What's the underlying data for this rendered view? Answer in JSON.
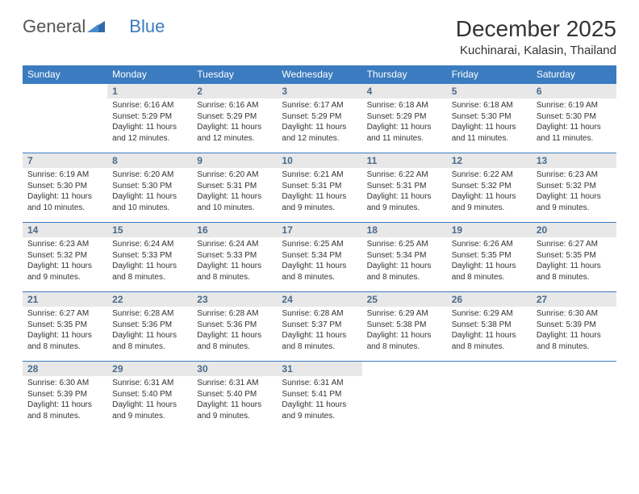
{
  "brand": {
    "general": "General",
    "blue": "Blue"
  },
  "title": "December 2025",
  "location": "Kuchinarai, Kalasin, Thailand",
  "colors": {
    "header_bg": "#3b7bbf",
    "header_text": "#ffffff",
    "daynum_bg": "#e8e8e8",
    "daynum_text": "#4a6a8a",
    "body_text": "#333333",
    "page_bg": "#ffffff",
    "border": "#3b7bbf"
  },
  "weekdays": [
    "Sunday",
    "Monday",
    "Tuesday",
    "Wednesday",
    "Thursday",
    "Friday",
    "Saturday"
  ],
  "weeks": [
    [
      {
        "empty": true
      },
      {
        "num": "1",
        "sunrise": "Sunrise: 6:16 AM",
        "sunset": "Sunset: 5:29 PM",
        "daylight": "Daylight: 11 hours and 12 minutes."
      },
      {
        "num": "2",
        "sunrise": "Sunrise: 6:16 AM",
        "sunset": "Sunset: 5:29 PM",
        "daylight": "Daylight: 11 hours and 12 minutes."
      },
      {
        "num": "3",
        "sunrise": "Sunrise: 6:17 AM",
        "sunset": "Sunset: 5:29 PM",
        "daylight": "Daylight: 11 hours and 12 minutes."
      },
      {
        "num": "4",
        "sunrise": "Sunrise: 6:18 AM",
        "sunset": "Sunset: 5:29 PM",
        "daylight": "Daylight: 11 hours and 11 minutes."
      },
      {
        "num": "5",
        "sunrise": "Sunrise: 6:18 AM",
        "sunset": "Sunset: 5:30 PM",
        "daylight": "Daylight: 11 hours and 11 minutes."
      },
      {
        "num": "6",
        "sunrise": "Sunrise: 6:19 AM",
        "sunset": "Sunset: 5:30 PM",
        "daylight": "Daylight: 11 hours and 11 minutes."
      }
    ],
    [
      {
        "num": "7",
        "sunrise": "Sunrise: 6:19 AM",
        "sunset": "Sunset: 5:30 PM",
        "daylight": "Daylight: 11 hours and 10 minutes."
      },
      {
        "num": "8",
        "sunrise": "Sunrise: 6:20 AM",
        "sunset": "Sunset: 5:30 PM",
        "daylight": "Daylight: 11 hours and 10 minutes."
      },
      {
        "num": "9",
        "sunrise": "Sunrise: 6:20 AM",
        "sunset": "Sunset: 5:31 PM",
        "daylight": "Daylight: 11 hours and 10 minutes."
      },
      {
        "num": "10",
        "sunrise": "Sunrise: 6:21 AM",
        "sunset": "Sunset: 5:31 PM",
        "daylight": "Daylight: 11 hours and 9 minutes."
      },
      {
        "num": "11",
        "sunrise": "Sunrise: 6:22 AM",
        "sunset": "Sunset: 5:31 PM",
        "daylight": "Daylight: 11 hours and 9 minutes."
      },
      {
        "num": "12",
        "sunrise": "Sunrise: 6:22 AM",
        "sunset": "Sunset: 5:32 PM",
        "daylight": "Daylight: 11 hours and 9 minutes."
      },
      {
        "num": "13",
        "sunrise": "Sunrise: 6:23 AM",
        "sunset": "Sunset: 5:32 PM",
        "daylight": "Daylight: 11 hours and 9 minutes."
      }
    ],
    [
      {
        "num": "14",
        "sunrise": "Sunrise: 6:23 AM",
        "sunset": "Sunset: 5:32 PM",
        "daylight": "Daylight: 11 hours and 9 minutes."
      },
      {
        "num": "15",
        "sunrise": "Sunrise: 6:24 AM",
        "sunset": "Sunset: 5:33 PM",
        "daylight": "Daylight: 11 hours and 8 minutes."
      },
      {
        "num": "16",
        "sunrise": "Sunrise: 6:24 AM",
        "sunset": "Sunset: 5:33 PM",
        "daylight": "Daylight: 11 hours and 8 minutes."
      },
      {
        "num": "17",
        "sunrise": "Sunrise: 6:25 AM",
        "sunset": "Sunset: 5:34 PM",
        "daylight": "Daylight: 11 hours and 8 minutes."
      },
      {
        "num": "18",
        "sunrise": "Sunrise: 6:25 AM",
        "sunset": "Sunset: 5:34 PM",
        "daylight": "Daylight: 11 hours and 8 minutes."
      },
      {
        "num": "19",
        "sunrise": "Sunrise: 6:26 AM",
        "sunset": "Sunset: 5:35 PM",
        "daylight": "Daylight: 11 hours and 8 minutes."
      },
      {
        "num": "20",
        "sunrise": "Sunrise: 6:27 AM",
        "sunset": "Sunset: 5:35 PM",
        "daylight": "Daylight: 11 hours and 8 minutes."
      }
    ],
    [
      {
        "num": "21",
        "sunrise": "Sunrise: 6:27 AM",
        "sunset": "Sunset: 5:35 PM",
        "daylight": "Daylight: 11 hours and 8 minutes."
      },
      {
        "num": "22",
        "sunrise": "Sunrise: 6:28 AM",
        "sunset": "Sunset: 5:36 PM",
        "daylight": "Daylight: 11 hours and 8 minutes."
      },
      {
        "num": "23",
        "sunrise": "Sunrise: 6:28 AM",
        "sunset": "Sunset: 5:36 PM",
        "daylight": "Daylight: 11 hours and 8 minutes."
      },
      {
        "num": "24",
        "sunrise": "Sunrise: 6:28 AM",
        "sunset": "Sunset: 5:37 PM",
        "daylight": "Daylight: 11 hours and 8 minutes."
      },
      {
        "num": "25",
        "sunrise": "Sunrise: 6:29 AM",
        "sunset": "Sunset: 5:38 PM",
        "daylight": "Daylight: 11 hours and 8 minutes."
      },
      {
        "num": "26",
        "sunrise": "Sunrise: 6:29 AM",
        "sunset": "Sunset: 5:38 PM",
        "daylight": "Daylight: 11 hours and 8 minutes."
      },
      {
        "num": "27",
        "sunrise": "Sunrise: 6:30 AM",
        "sunset": "Sunset: 5:39 PM",
        "daylight": "Daylight: 11 hours and 8 minutes."
      }
    ],
    [
      {
        "num": "28",
        "sunrise": "Sunrise: 6:30 AM",
        "sunset": "Sunset: 5:39 PM",
        "daylight": "Daylight: 11 hours and 8 minutes."
      },
      {
        "num": "29",
        "sunrise": "Sunrise: 6:31 AM",
        "sunset": "Sunset: 5:40 PM",
        "daylight": "Daylight: 11 hours and 9 minutes."
      },
      {
        "num": "30",
        "sunrise": "Sunrise: 6:31 AM",
        "sunset": "Sunset: 5:40 PM",
        "daylight": "Daylight: 11 hours and 9 minutes."
      },
      {
        "num": "31",
        "sunrise": "Sunrise: 6:31 AM",
        "sunset": "Sunset: 5:41 PM",
        "daylight": "Daylight: 11 hours and 9 minutes."
      },
      {
        "empty": true
      },
      {
        "empty": true
      },
      {
        "empty": true
      }
    ]
  ]
}
